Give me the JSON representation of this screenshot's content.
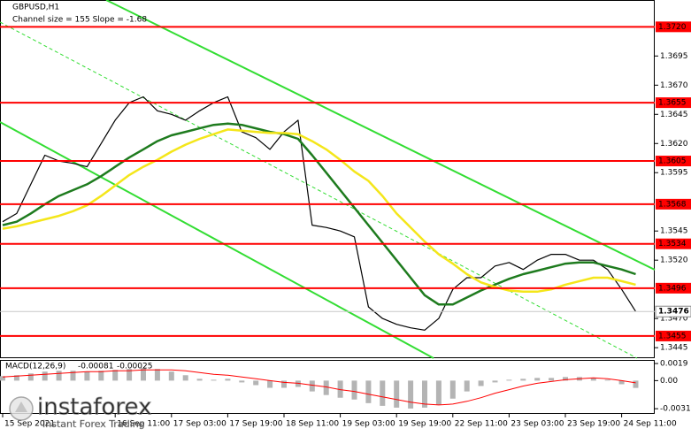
{
  "chart_data": [
    {
      "type": "line",
      "title": "GBPUSD,H1",
      "subtitle": "Channel size = 155 Slope = -1.68",
      "categories": [
        "15 Sep 2021",
        null,
        null,
        null,
        null,
        null,
        null,
        null,
        "16 Sep 11:00",
        null,
        null,
        null,
        "17 Sep 03:00",
        null,
        null,
        null,
        "17 Sep 19:00",
        null,
        null,
        null,
        "18 Sep 11:00",
        null,
        null,
        null,
        "19 Sep 03:00",
        null,
        null,
        null,
        "19 Sep 19:00",
        null,
        null,
        null,
        "22 Sep 11:00",
        null,
        null,
        null,
        "23 Sep 03:00",
        null,
        null,
        null,
        "23 Sep 19:00",
        null,
        null,
        null,
        "24 Sep 11:00",
        null
      ],
      "series": [
        {
          "color": "#000000",
          "values": [
            1.3553,
            1.356,
            1.3585,
            1.361,
            1.3605,
            1.3603,
            1.36,
            1.362,
            1.364,
            1.3655,
            1.366,
            1.3648,
            1.3645,
            1.364,
            1.3648,
            1.3655,
            1.366,
            1.363,
            1.3625,
            1.3615,
            1.363,
            1.364,
            1.355,
            1.3548,
            1.3545,
            1.354,
            1.348,
            1.347,
            1.3465,
            1.3462,
            1.346,
            1.347,
            1.3495,
            1.3505,
            1.3505,
            1.3515,
            1.3518,
            1.3512,
            1.352,
            1.3525,
            1.3525,
            1.352,
            1.352,
            1.3512,
            1.3495,
            1.3476
          ]
        },
        {
          "color": "#1e7b1e",
          "values": [
            1.355,
            1.3553,
            1.356,
            1.3568,
            1.3575,
            1.358,
            1.3585,
            1.3592,
            1.36,
            1.3608,
            1.3615,
            1.3622,
            1.3627,
            1.363,
            1.3633,
            1.3636,
            1.3637,
            1.3636,
            1.3633,
            1.363,
            1.3628,
            1.3624,
            1.361,
            1.3595,
            1.358,
            1.3565,
            1.355,
            1.3535,
            1.352,
            1.3505,
            1.349,
            1.3482,
            1.3482,
            1.3488,
            1.3494,
            1.3499,
            1.3504,
            1.3508,
            1.3511,
            1.3514,
            1.3517,
            1.3518,
            1.3518,
            1.3515,
            1.3512,
            1.3508
          ]
        },
        {
          "color": "#f4e61a",
          "values": [
            1.3547,
            1.3549,
            1.3552,
            1.3555,
            1.3558,
            1.3562,
            1.3567,
            1.3575,
            1.3584,
            1.3593,
            1.36,
            1.3606,
            1.3613,
            1.3619,
            1.3624,
            1.3628,
            1.3632,
            1.3631,
            1.363,
            1.3629,
            1.3629,
            1.3628,
            1.3622,
            1.3615,
            1.3606,
            1.3596,
            1.3588,
            1.3575,
            1.356,
            1.3548,
            1.3536,
            1.3525,
            1.3517,
            1.3508,
            1.3501,
            1.3497,
            1.3494,
            1.3493,
            1.3493,
            1.3495,
            1.3499,
            1.3502,
            1.3505,
            1.3505,
            1.3502,
            1.3499
          ]
        }
      ],
      "levels": [
        {
          "value": 1.372,
          "label": "1.3720"
        },
        {
          "value": 1.3655,
          "label": "1.3655"
        },
        {
          "value": 1.3605,
          "label": "1.3605"
        },
        {
          "value": 1.3568,
          "label": "1.3568"
        },
        {
          "value": 1.3534,
          "label": "1.3534"
        },
        {
          "value": 1.3496,
          "label": "1.3496"
        },
        {
          "value": 1.3455,
          "label": "1.3455"
        }
      ],
      "level_color": "#ff0000",
      "last": 1.3476,
      "ylim": [
        1.3436,
        1.3743
      ],
      "yticks": [
        1.3695,
        {
          "value": 1.367,
          "label": "1.3670"
        },
        1.3645,
        {
          "value": 1.362,
          "label": "1.3620"
        },
        1.3595,
        1.3545,
        {
          "value": 1.352,
          "label": "1.3520"
        },
        {
          "value": 1.347,
          "label": "1.3470"
        },
        1.3445
      ]
    },
    {
      "type": "bar",
      "title": "MACD(12,26,9)",
      "main": -0.00081,
      "signal": -0.00025,
      "color": "#b4b4b4",
      "values": [
        0.0005,
        0.0006,
        0.0008,
        0.001,
        0.0011,
        0.0011,
        0.001,
        0.0011,
        0.0012,
        0.0013,
        0.0014,
        0.0013,
        0.001,
        0.0006,
        0.0002,
        0.0001,
        0.0002,
        -0.0002,
        -0.0005,
        -0.0008,
        -0.0008,
        -0.0007,
        -0.0012,
        -0.0016,
        -0.0019,
        -0.0021,
        -0.0025,
        -0.0028,
        -0.003,
        -0.0031,
        -0.003,
        -0.0027,
        -0.002,
        -0.0012,
        -0.0006,
        -0.0002,
        0.0001,
        0.0002,
        0.0003,
        0.0003,
        0.0004,
        0.0004,
        0.0003,
        0.0001,
        -0.0004,
        -0.00081
      ],
      "series": [
        {
          "color": "#ff0000",
          "values": [
            0.0004,
            0.0005,
            0.0006,
            0.0007,
            0.0008,
            0.0009,
            0.001,
            0.001,
            0.0011,
            0.0011,
            0.0012,
            0.0012,
            0.0012,
            0.0011,
            0.0009,
            0.0007,
            0.0006,
            0.0004,
            0.0002,
            0.0,
            -0.0002,
            -0.0003,
            -0.0005,
            -0.0007,
            -0.001,
            -0.0012,
            -0.0015,
            -0.0018,
            -0.0021,
            -0.0024,
            -0.0026,
            -0.0027,
            -0.0026,
            -0.0023,
            -0.0019,
            -0.0014,
            -0.001,
            -0.0006,
            -0.0003,
            -0.0001,
            0.0001,
            0.0002,
            0.0003,
            0.0002,
            0.0,
            -0.00025
          ]
        }
      ],
      "ylim": [
        -0.0034,
        0.0021
      ],
      "yticks": [
        0.0019,
        {
          "value": 0,
          "label": "0.00"
        },
        -0.00312
      ]
    }
  ],
  "watermark": {
    "brand": "instaforex",
    "tagline": "Instant Forex Trading"
  }
}
